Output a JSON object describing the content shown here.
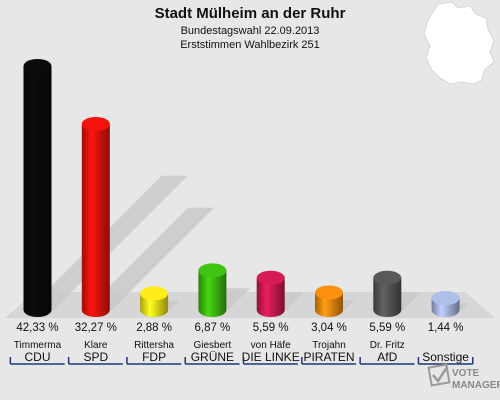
{
  "chart_data": {
    "type": "bar",
    "title": "Stadt Mülheim an der Ruhr",
    "subtitle1": "Bundestagswahl 22.09.2013",
    "subtitle2": "Erststimmen Wahlbezirk 251",
    "categories": [
      "CDU",
      "SPD",
      "FDP",
      "GRÜNE",
      "DIE LINKE",
      "PIRATEN",
      "AfD",
      "Sonstige"
    ],
    "candidates": [
      "Timmerma",
      "Klare",
      "Rittersha",
      "Giesbert",
      "von Häfe",
      "Trojahn",
      "Dr. Fritz",
      ""
    ],
    "values": [
      42.33,
      32.27,
      2.88,
      6.87,
      5.59,
      3.04,
      5.59,
      1.44
    ],
    "labels": [
      "42,33 %",
      "32,27 %",
      "2,88 %",
      "6,87 %",
      "5,59 %",
      "3,04 %",
      "5,59 %",
      "1,44 %"
    ],
    "colors": [
      "#0a0a0a",
      "#e8120c",
      "#f5e21a",
      "#3dbb11",
      "#cc1a52",
      "#f08a10",
      "#555555",
      "#a8b6df"
    ],
    "ylim": [
      0,
      42.33
    ],
    "grid": false,
    "legend": "none"
  },
  "watermark": {
    "line1": "VOTE",
    "line2": "MANAGER"
  }
}
